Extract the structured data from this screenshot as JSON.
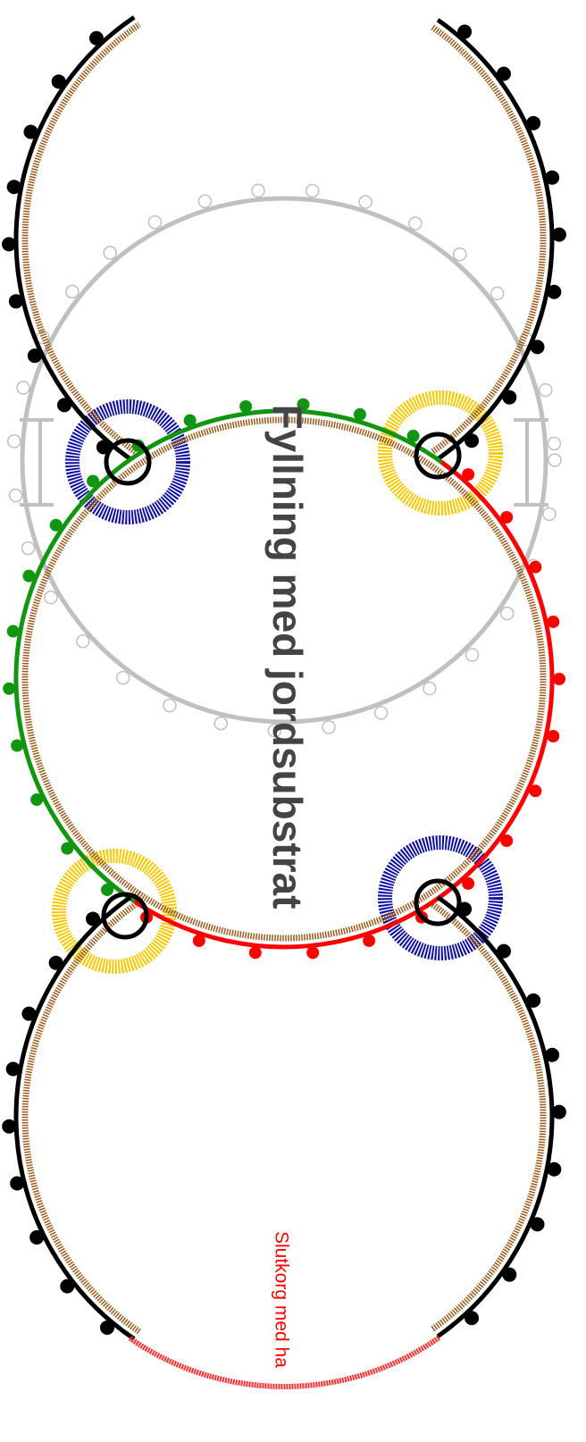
{
  "labels": {
    "main": "Fyllning med jordsubstrat",
    "end": "Slutkorg med ha"
  }
}
